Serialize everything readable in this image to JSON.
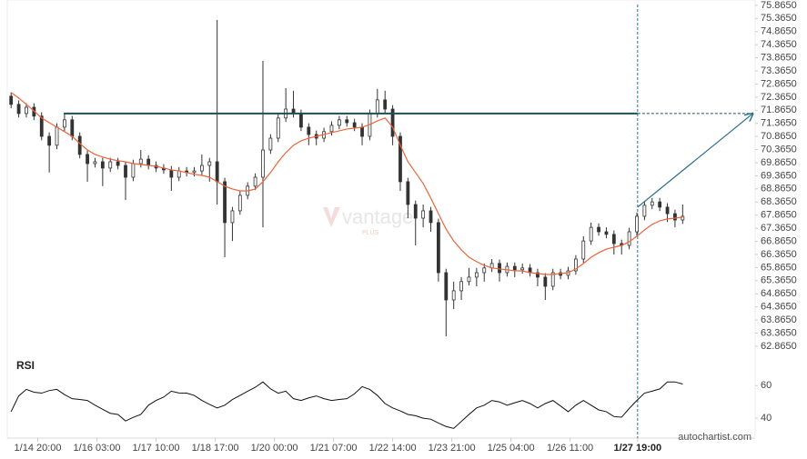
{
  "chart_data": [
    {
      "type": "candlestick",
      "color": "#333333",
      "xlim": [
        -0.5,
        97.5
      ],
      "ylim": [
        62.55,
        76.07
      ],
      "grid": false,
      "xticks": [
        {
          "value": 3.5,
          "label": "1/14 20:00"
        },
        {
          "value": 11.25,
          "label": "1/16 03:00"
        },
        {
          "value": 19,
          "label": "1/17 10:00"
        },
        {
          "value": 26.75,
          "label": "1/18 17:00"
        },
        {
          "value": 34.5,
          "label": "1/20 00:00"
        },
        {
          "value": 42.25,
          "label": "1/21 07:00"
        },
        {
          "value": 50,
          "label": "1/22 14:00"
        },
        {
          "value": 57.75,
          "label": "1/23 21:00"
        },
        {
          "value": 65.5,
          "label": "1/25 04:00"
        },
        {
          "value": 73.25,
          "label": "1/26 11:00"
        },
        {
          "value": 82.1,
          "label": "1/27 19:00"
        }
      ],
      "yticks": [
        {
          "value": 75.865,
          "label": "75.8650"
        },
        {
          "value": 75.365,
          "label": "75.3650"
        },
        {
          "value": 74.865,
          "label": "74.8650"
        },
        {
          "value": 74.365,
          "label": "74.3650"
        },
        {
          "value": 73.865,
          "label": "73.8650"
        },
        {
          "value": 73.365,
          "label": "73.3650"
        },
        {
          "value": 72.865,
          "label": "72.8650"
        },
        {
          "value": 72.365,
          "label": "72.3650"
        },
        {
          "value": 71.865,
          "label": "71.8650"
        },
        {
          "value": 71.365,
          "label": "71.3650"
        },
        {
          "value": 70.865,
          "label": "70.8650"
        },
        {
          "value": 70.365,
          "label": "70.3650"
        },
        {
          "value": 69.865,
          "label": "69.8650"
        },
        {
          "value": 69.365,
          "label": "69.3650"
        },
        {
          "value": 68.865,
          "label": "68.8650"
        },
        {
          "value": 68.365,
          "label": "68.3650"
        },
        {
          "value": 67.865,
          "label": "67.8650"
        },
        {
          "value": 67.365,
          "label": "67.3650"
        },
        {
          "value": 66.865,
          "label": "66.8650"
        },
        {
          "value": 66.365,
          "label": "66.3650"
        },
        {
          "value": 65.865,
          "label": "65.8650"
        },
        {
          "value": 65.365,
          "label": "65.3650"
        },
        {
          "value": 64.865,
          "label": "64.8650"
        },
        {
          "value": 64.365,
          "label": "64.3650"
        },
        {
          "value": 63.865,
          "label": "63.8650"
        },
        {
          "value": 63.365,
          "label": "63.3650"
        },
        {
          "value": 62.865,
          "label": "62.8650"
        }
      ],
      "open": [
        72.4,
        72.09,
        71.74,
        71.98,
        71.64,
        70.87,
        70.53,
        71.22,
        71.5,
        70.87,
        70.18,
        69.83,
        69.9,
        69.66,
        69.9,
        69.76,
        69.31,
        69.83,
        70.0,
        69.76,
        69.66,
        69.59,
        69.31,
        69.55,
        69.49,
        69.55,
        69.76,
        69.9,
        69.14,
        67.58,
        68.03,
        68.62,
        68.97,
        69.31,
        70.35,
        70.8,
        71.57,
        71.91,
        71.74,
        71.22,
        70.94,
        70.8,
        71.05,
        71.29,
        71.5,
        71.39,
        71.22,
        70.87,
        71.74,
        72.26,
        71.91,
        70.87,
        69.14,
        68.27,
        67.75,
        68.03,
        67.58,
        65.67,
        64.63,
        64.98,
        65.33,
        65.5,
        65.67,
        65.85,
        66.02,
        65.67,
        65.91,
        65.78,
        65.85,
        65.67,
        65.5,
        65.15,
        65.67,
        65.57,
        65.74,
        66.19,
        66.88,
        67.4,
        67.23,
        67.13,
        66.78,
        66.71,
        67.23,
        67.82,
        68.24,
        68.37,
        68.17,
        67.92,
        67.68
      ],
      "high": [
        72.55,
        72.24,
        72.13,
        72.13,
        71.79,
        71.02,
        71.37,
        71.75,
        71.65,
        71.02,
        70.33,
        70.05,
        70.05,
        70.05,
        70.05,
        69.91,
        69.98,
        70.35,
        70.15,
        69.91,
        69.81,
        69.74,
        69.7,
        69.7,
        69.7,
        70.18,
        70.05,
        75.31,
        69.29,
        68.18,
        68.77,
        69.12,
        69.46,
        73.75,
        70.95,
        71.72,
        72.71,
        72.61,
        71.89,
        71.37,
        71.09,
        71.2,
        71.44,
        71.65,
        71.65,
        71.54,
        71.37,
        71.89,
        72.68,
        72.61,
        72.06,
        71.02,
        69.29,
        68.42,
        68.27,
        68.18,
        67.73,
        65.82,
        65.33,
        65.5,
        65.85,
        65.85,
        66.02,
        66.19,
        66.17,
        66.06,
        66.06,
        66.02,
        66.0,
        65.82,
        65.65,
        65.82,
        65.82,
        65.89,
        66.34,
        67.06,
        67.58,
        67.55,
        67.4,
        67.28,
        66.93,
        67.38,
        67.97,
        68.39,
        68.52,
        68.52,
        68.32,
        68.07,
        68.27
      ],
      "low": [
        71.94,
        71.59,
        71.59,
        71.49,
        70.72,
        69.49,
        70.38,
        71.07,
        70.72,
        70.03,
        69.14,
        69.68,
        68.97,
        69.51,
        69.61,
        68.44,
        69.16,
        69.68,
        69.61,
        69.51,
        69.44,
        68.79,
        69.16,
        69.34,
        69.34,
        69.4,
        69.14,
        68.27,
        66.26,
        66.88,
        67.88,
        68.47,
        68.82,
        67.4,
        70.2,
        70.65,
        71.42,
        71.59,
        71.07,
        70.53,
        70.53,
        70.65,
        70.9,
        71.14,
        71.24,
        71.07,
        70.53,
        70.72,
        71.59,
        71.76,
        70.53,
        68.79,
        67.75,
        66.71,
        67.4,
        67.23,
        65.33,
        63.24,
        64.28,
        64.63,
        65.18,
        65.15,
        65.33,
        65.7,
        65.33,
        65.52,
        65.5,
        65.63,
        65.52,
        65.15,
        64.63,
        65.0,
        65.42,
        65.42,
        65.59,
        66.04,
        66.73,
        67.08,
        66.98,
        66.36,
        66.36,
        66.56,
        67.08,
        67.67,
        68.09,
        68.02,
        67.6,
        67.4,
        67.53
      ],
      "close": [
        72.09,
        71.74,
        71.98,
        71.64,
        70.87,
        70.53,
        71.22,
        71.5,
        70.87,
        70.18,
        69.83,
        69.9,
        69.66,
        69.9,
        69.76,
        69.31,
        69.83,
        70.0,
        69.76,
        69.66,
        69.59,
        69.31,
        69.55,
        69.49,
        69.55,
        69.76,
        69.9,
        69.14,
        67.58,
        68.03,
        68.62,
        68.97,
        69.31,
        70.35,
        70.8,
        71.57,
        71.91,
        71.74,
        71.22,
        70.94,
        70.8,
        71.05,
        71.29,
        71.5,
        71.39,
        71.22,
        70.87,
        71.74,
        72.26,
        71.91,
        70.87,
        69.14,
        68.27,
        67.75,
        68.03,
        67.58,
        65.67,
        64.63,
        64.98,
        65.33,
        65.5,
        65.67,
        65.85,
        66.02,
        65.67,
        65.91,
        65.78,
        65.85,
        65.67,
        65.5,
        65.15,
        65.67,
        65.57,
        65.74,
        66.19,
        66.88,
        67.4,
        67.23,
        67.13,
        66.78,
        66.71,
        67.23,
        67.82,
        68.24,
        68.37,
        68.17,
        67.92,
        67.68,
        67.82
      ],
      "ma": {
        "color": "#f0643c",
        "values": [
          72.54,
          72.33,
          72.09,
          71.84,
          71.57,
          71.39,
          71.22,
          71.05,
          70.87,
          70.6,
          70.35,
          70.18,
          70.08,
          70.0,
          69.94,
          69.9,
          69.83,
          69.8,
          69.76,
          69.73,
          69.66,
          69.59,
          69.55,
          69.49,
          69.42,
          69.38,
          69.31,
          69.14,
          68.97,
          68.86,
          68.79,
          68.79,
          68.86,
          69.14,
          69.49,
          69.9,
          70.25,
          70.53,
          70.7,
          70.8,
          70.87,
          70.94,
          71.01,
          71.08,
          71.15,
          71.18,
          71.22,
          71.32,
          71.46,
          71.57,
          71.22,
          70.53,
          69.9,
          69.49,
          69.07,
          68.51,
          67.92,
          67.33,
          66.88,
          66.54,
          66.26,
          66.09,
          65.95,
          65.85,
          65.81,
          65.78,
          65.74,
          65.74,
          65.67,
          65.64,
          65.6,
          65.6,
          65.64,
          65.67,
          65.81,
          66.02,
          66.26,
          66.43,
          66.57,
          66.64,
          66.71,
          66.85,
          67.06,
          67.3,
          67.51,
          67.65,
          67.72,
          67.75,
          67.79
        ]
      },
      "resistance": {
        "color": "#1f4e5a",
        "y": 71.74,
        "x": [
          6.9,
          82.1,
          97.2
        ]
      },
      "arrow": {
        "color": "#2f6f8f",
        "x": [
          82.1,
          97.2
        ],
        "y": [
          68.17,
          71.74
        ]
      },
      "pattern_end": 82.1,
      "watermark": "vantage",
      "watermark_sub": "PLUS",
      "source": "autochartist.com"
    },
    {
      "type": "line",
      "title": "RSI",
      "color": "#111111",
      "ylim": [
        30,
        68
      ],
      "yticks": [
        60,
        40
      ],
      "values": [
        44.0,
        53.7,
        57.7,
        56.0,
        55.4,
        57.0,
        57.7,
        54.5,
        52.0,
        51.5,
        50.9,
        48.0,
        45.5,
        43.0,
        42.3,
        38.3,
        40.5,
        42.3,
        48.0,
        50.9,
        53.0,
        56.6,
        55.5,
        55.4,
        54.0,
        50.9,
        48.5,
        46.3,
        48.0,
        51.5,
        54.0,
        56.6,
        59.0,
        62.3,
        58.0,
        55.4,
        56.6,
        52.0,
        50.9,
        52.5,
        53.7,
        52.0,
        50.9,
        51.5,
        52.0,
        55.0,
        59.4,
        57.7,
        54.0,
        49.0,
        46.3,
        44.5,
        42.3,
        41.5,
        40.0,
        39.4,
        37.0,
        34.9,
        33.7,
        38.0,
        42.3,
        46.3,
        48.0,
        50.9,
        50.0,
        48.0,
        49.5,
        50.9,
        49.0,
        46.3,
        49.0,
        50.9,
        47.5,
        44.0,
        48.0,
        50.9,
        48.0,
        45.1,
        44.0,
        41.0,
        40.6,
        46.0,
        50.9,
        55.4,
        56.6,
        58.0,
        62.3,
        62.3,
        61.0
      ]
    }
  ]
}
